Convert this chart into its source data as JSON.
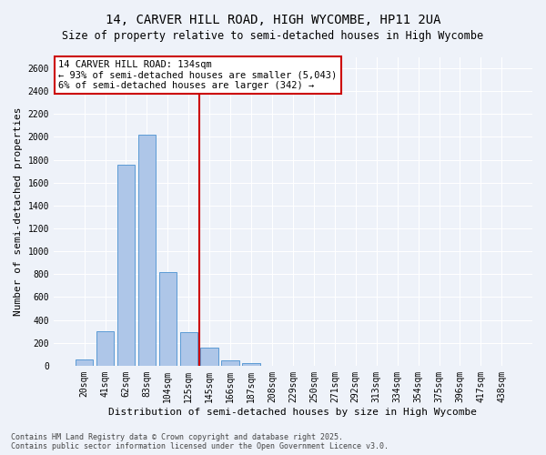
{
  "title_line1": "14, CARVER HILL ROAD, HIGH WYCOMBE, HP11 2UA",
  "title_line2": "Size of property relative to semi-detached houses in High Wycombe",
  "xlabel": "Distribution of semi-detached houses by size in High Wycombe",
  "ylabel": "Number of semi-detached properties",
  "categories": [
    "20sqm",
    "41sqm",
    "62sqm",
    "83sqm",
    "104sqm",
    "125sqm",
    "145sqm",
    "166sqm",
    "187sqm",
    "208sqm",
    "229sqm",
    "250sqm",
    "271sqm",
    "292sqm",
    "313sqm",
    "334sqm",
    "354sqm",
    "375sqm",
    "396sqm",
    "417sqm",
    "438sqm"
  ],
  "bar_heights": [
    55,
    300,
    1760,
    2020,
    815,
    290,
    160,
    50,
    25,
    0,
    0,
    0,
    0,
    0,
    0,
    0,
    0,
    0,
    0,
    0,
    0
  ],
  "bar_color": "#aec6e8",
  "bar_edge_color": "#5b9bd5",
  "vline_x": 5.5,
  "vline_color": "#cc0000",
  "annotation_text": "14 CARVER HILL ROAD: 134sqm\n← 93% of semi-detached houses are smaller (5,043)\n6% of semi-detached houses are larger (342) →",
  "annotation_box_color": "#cc0000",
  "ylim": [
    0,
    2700
  ],
  "yticks": [
    0,
    200,
    400,
    600,
    800,
    1000,
    1200,
    1400,
    1600,
    1800,
    2000,
    2200,
    2400,
    2600
  ],
  "background_color": "#eef2f9",
  "grid_color": "#ffffff",
  "footer": "Contains HM Land Registry data © Crown copyright and database right 2025.\nContains public sector information licensed under the Open Government Licence v3.0.",
  "title_fontsize": 10,
  "subtitle_fontsize": 8.5,
  "axis_label_fontsize": 8,
  "tick_fontsize": 7,
  "annotation_fontsize": 7.5,
  "footer_fontsize": 6
}
